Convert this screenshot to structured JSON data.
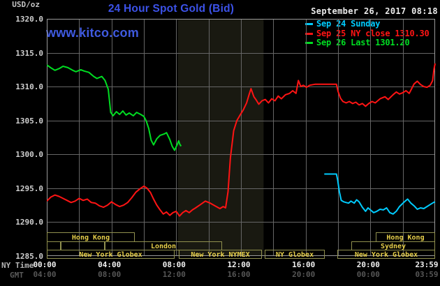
{
  "header": {
    "unit_label": "USD/oz",
    "title": "24 Hour Spot Gold (Bid)",
    "timestamp": "September 26, 2017 08:18",
    "watermark": "www.kitco.com"
  },
  "axes": {
    "ny_time_label": "NY Time",
    "gmt_label": "GMT",
    "ny_ticks": [
      "00:00",
      "04:00",
      "08:00",
      "12:00",
      "16:00",
      "20:00",
      "23:59"
    ],
    "gmt_ticks": [
      "04:00",
      "08:00",
      "12:00",
      "16:00",
      "20:00",
      "00:00",
      "03:59"
    ],
    "y_tick_labels": [
      "1320.0",
      "1315.0",
      "1310.0",
      "1305.0",
      "1300.0",
      "1295.0",
      "1290.0",
      "1285.0"
    ]
  },
  "colors": {
    "background": "#000000",
    "grid": "#666666",
    "frame": "#9a9a9a",
    "band": "#191911",
    "session_border": "#90904e",
    "session_label": "#e6cf4a",
    "title_blue": "#3c52e8"
  },
  "chart_data": {
    "type": "line",
    "title": "24 Hour Spot Gold (Bid)",
    "xlabel": "NY Time",
    "ylabel": "USD/oz",
    "xlim_hours": [
      0,
      24
    ],
    "ylim": [
      1285,
      1320
    ],
    "y_ticks": [
      1320,
      1315,
      1310,
      1305,
      1300,
      1295,
      1290,
      1285
    ],
    "x_gridline_step_hours": 2,
    "highlight_band_hours": [
      8.1,
      13.4
    ],
    "legend_position": "top-right",
    "series": [
      {
        "name": "Sep 24 Sunday",
        "color": "#00ccff",
        "points": [
          [
            17.15,
            1297.1
          ],
          [
            17.9,
            1297.1
          ],
          [
            17.98,
            1296.2
          ],
          [
            18.08,
            1294.5
          ],
          [
            18.2,
            1293.2
          ],
          [
            18.35,
            1293.0
          ],
          [
            18.5,
            1292.9
          ],
          [
            18.65,
            1292.8
          ],
          [
            18.8,
            1293.1
          ],
          [
            19.0,
            1292.8
          ],
          [
            19.15,
            1293.3
          ],
          [
            19.3,
            1293.0
          ],
          [
            19.5,
            1292.2
          ],
          [
            19.7,
            1291.6
          ],
          [
            19.85,
            1292.1
          ],
          [
            20.0,
            1291.8
          ],
          [
            20.2,
            1291.4
          ],
          [
            20.4,
            1291.6
          ],
          [
            20.6,
            1291.9
          ],
          [
            20.8,
            1291.8
          ],
          [
            21.0,
            1292.1
          ],
          [
            21.2,
            1291.4
          ],
          [
            21.4,
            1291.2
          ],
          [
            21.6,
            1291.6
          ],
          [
            21.8,
            1292.3
          ],
          [
            22.1,
            1293.0
          ],
          [
            22.3,
            1293.4
          ],
          [
            22.5,
            1292.8
          ],
          [
            22.7,
            1292.4
          ],
          [
            22.9,
            1291.9
          ],
          [
            23.1,
            1292.1
          ],
          [
            23.3,
            1292.0
          ],
          [
            23.5,
            1292.3
          ],
          [
            23.7,
            1292.6
          ],
          [
            23.9,
            1292.9
          ],
          [
            24.0,
            1293.0
          ]
        ]
      },
      {
        "name": "Sep 25 NY close 1310.30",
        "color": "#ff1414",
        "points": [
          [
            0,
            1293.1
          ],
          [
            0.25,
            1293.7
          ],
          [
            0.5,
            1294.0
          ],
          [
            0.75,
            1293.8
          ],
          [
            1.0,
            1293.5
          ],
          [
            1.25,
            1293.2
          ],
          [
            1.5,
            1292.9
          ],
          [
            1.75,
            1293.1
          ],
          [
            2.0,
            1293.5
          ],
          [
            2.25,
            1293.2
          ],
          [
            2.5,
            1293.4
          ],
          [
            2.75,
            1292.9
          ],
          [
            3.0,
            1292.8
          ],
          [
            3.25,
            1292.4
          ],
          [
            3.5,
            1292.2
          ],
          [
            3.75,
            1292.5
          ],
          [
            4.0,
            1293.0
          ],
          [
            4.25,
            1292.6
          ],
          [
            4.5,
            1292.3
          ],
          [
            4.75,
            1292.5
          ],
          [
            5.0,
            1292.9
          ],
          [
            5.25,
            1293.6
          ],
          [
            5.5,
            1294.4
          ],
          [
            5.75,
            1294.9
          ],
          [
            6.0,
            1295.3
          ],
          [
            6.2,
            1295.0
          ],
          [
            6.4,
            1294.4
          ],
          [
            6.6,
            1293.4
          ],
          [
            6.8,
            1292.5
          ],
          [
            7.0,
            1291.8
          ],
          [
            7.2,
            1291.2
          ],
          [
            7.4,
            1291.5
          ],
          [
            7.6,
            1291.0
          ],
          [
            7.8,
            1291.4
          ],
          [
            8.0,
            1291.6
          ],
          [
            8.2,
            1290.9
          ],
          [
            8.4,
            1291.4
          ],
          [
            8.6,
            1291.7
          ],
          [
            8.8,
            1291.4
          ],
          [
            9.0,
            1291.8
          ],
          [
            9.2,
            1292.1
          ],
          [
            9.5,
            1292.6
          ],
          [
            9.8,
            1293.1
          ],
          [
            10.1,
            1292.8
          ],
          [
            10.4,
            1292.4
          ],
          [
            10.7,
            1292.0
          ],
          [
            10.9,
            1292.3
          ],
          [
            11.05,
            1292.1
          ],
          [
            11.2,
            1294.5
          ],
          [
            11.35,
            1299.5
          ],
          [
            11.55,
            1303.5
          ],
          [
            11.75,
            1305.0
          ],
          [
            11.95,
            1305.8
          ],
          [
            12.15,
            1306.6
          ],
          [
            12.35,
            1307.6
          ],
          [
            12.5,
            1308.8
          ],
          [
            12.62,
            1309.7
          ],
          [
            12.8,
            1308.5
          ],
          [
            12.95,
            1308.0
          ],
          [
            13.1,
            1307.4
          ],
          [
            13.3,
            1307.9
          ],
          [
            13.5,
            1308.1
          ],
          [
            13.7,
            1307.6
          ],
          [
            13.9,
            1308.2
          ],
          [
            14.1,
            1307.9
          ],
          [
            14.3,
            1308.6
          ],
          [
            14.5,
            1308.2
          ],
          [
            14.75,
            1308.8
          ],
          [
            15.0,
            1309.0
          ],
          [
            15.2,
            1309.4
          ],
          [
            15.4,
            1309.0
          ],
          [
            15.55,
            1310.9
          ],
          [
            15.7,
            1310.0
          ],
          [
            15.85,
            1310.2
          ],
          [
            16.05,
            1309.9
          ],
          [
            16.25,
            1310.2
          ],
          [
            16.6,
            1310.35
          ],
          [
            17.9,
            1310.35
          ],
          [
            18.0,
            1309.3
          ],
          [
            18.15,
            1308.3
          ],
          [
            18.3,
            1307.8
          ],
          [
            18.5,
            1307.6
          ],
          [
            18.7,
            1307.8
          ],
          [
            18.9,
            1307.5
          ],
          [
            19.1,
            1307.7
          ],
          [
            19.3,
            1307.3
          ],
          [
            19.5,
            1307.5
          ],
          [
            19.7,
            1307.1
          ],
          [
            19.9,
            1307.5
          ],
          [
            20.1,
            1307.8
          ],
          [
            20.3,
            1307.6
          ],
          [
            20.6,
            1308.2
          ],
          [
            20.9,
            1308.5
          ],
          [
            21.1,
            1308.1
          ],
          [
            21.4,
            1308.8
          ],
          [
            21.6,
            1309.2
          ],
          [
            21.8,
            1308.9
          ],
          [
            22.0,
            1309.1
          ],
          [
            22.2,
            1309.4
          ],
          [
            22.4,
            1309.0
          ],
          [
            22.7,
            1310.4
          ],
          [
            22.9,
            1310.8
          ],
          [
            23.1,
            1310.3
          ],
          [
            23.3,
            1310.0
          ],
          [
            23.5,
            1309.9
          ],
          [
            23.7,
            1310.2
          ],
          [
            23.85,
            1310.9
          ],
          [
            23.93,
            1312.6
          ],
          [
            24.0,
            1313.4
          ]
        ]
      },
      {
        "name": "Sep 26 Last 1301.20",
        "color": "#00dd22",
        "points": [
          [
            0,
            1313.2
          ],
          [
            0.3,
            1312.7
          ],
          [
            0.5,
            1312.4
          ],
          [
            0.8,
            1312.7
          ],
          [
            1.0,
            1313.0
          ],
          [
            1.3,
            1312.8
          ],
          [
            1.6,
            1312.4
          ],
          [
            1.8,
            1312.2
          ],
          [
            2.1,
            1312.5
          ],
          [
            2.3,
            1312.3
          ],
          [
            2.6,
            1312.1
          ],
          [
            2.9,
            1311.5
          ],
          [
            3.1,
            1311.2
          ],
          [
            3.4,
            1311.5
          ],
          [
            3.6,
            1310.9
          ],
          [
            3.8,
            1309.6
          ],
          [
            3.95,
            1306.2
          ],
          [
            4.1,
            1305.7
          ],
          [
            4.3,
            1306.3
          ],
          [
            4.5,
            1305.9
          ],
          [
            4.7,
            1306.4
          ],
          [
            4.9,
            1305.8
          ],
          [
            5.1,
            1306.1
          ],
          [
            5.35,
            1305.7
          ],
          [
            5.55,
            1306.2
          ],
          [
            5.8,
            1305.9
          ],
          [
            6.0,
            1305.6
          ],
          [
            6.15,
            1304.9
          ],
          [
            6.3,
            1303.8
          ],
          [
            6.45,
            1302.1
          ],
          [
            6.6,
            1301.4
          ],
          [
            6.8,
            1302.3
          ],
          [
            7.0,
            1302.8
          ],
          [
            7.25,
            1303.0
          ],
          [
            7.4,
            1303.2
          ],
          [
            7.6,
            1302.2
          ],
          [
            7.75,
            1301.2
          ],
          [
            7.9,
            1300.6
          ],
          [
            8.05,
            1301.4
          ],
          [
            8.15,
            1302.0
          ],
          [
            8.22,
            1301.5
          ],
          [
            8.3,
            1301.2
          ]
        ]
      }
    ],
    "sessions": [
      {
        "row": 0,
        "boxes": [
          {
            "from": 0,
            "to": 5.45,
            "label": "Hong Kong"
          },
          {
            "from": 20.35,
            "to": 24,
            "label": "Hong Kong"
          }
        ]
      },
      {
        "row": 1,
        "boxes": [
          {
            "from": 0,
            "to": 0.85,
            "label": ""
          },
          {
            "from": 0.85,
            "to": 3.6,
            "label": ""
          },
          {
            "from": 3.6,
            "to": 10.85,
            "label": "London"
          },
          {
            "from": 18.8,
            "to": 24,
            "label": "Sydney"
          }
        ]
      },
      {
        "row": 2,
        "boxes": [
          {
            "from": 0,
            "to": 7.9,
            "label": "New York Globex"
          },
          {
            "from": 8.15,
            "to": 13.3,
            "label": "New York NYMEX"
          },
          {
            "from": 13.45,
            "to": 17.2,
            "label": "NY Globex"
          },
          {
            "from": 17.95,
            "to": 24,
            "label": "New York Globex"
          }
        ]
      }
    ]
  }
}
